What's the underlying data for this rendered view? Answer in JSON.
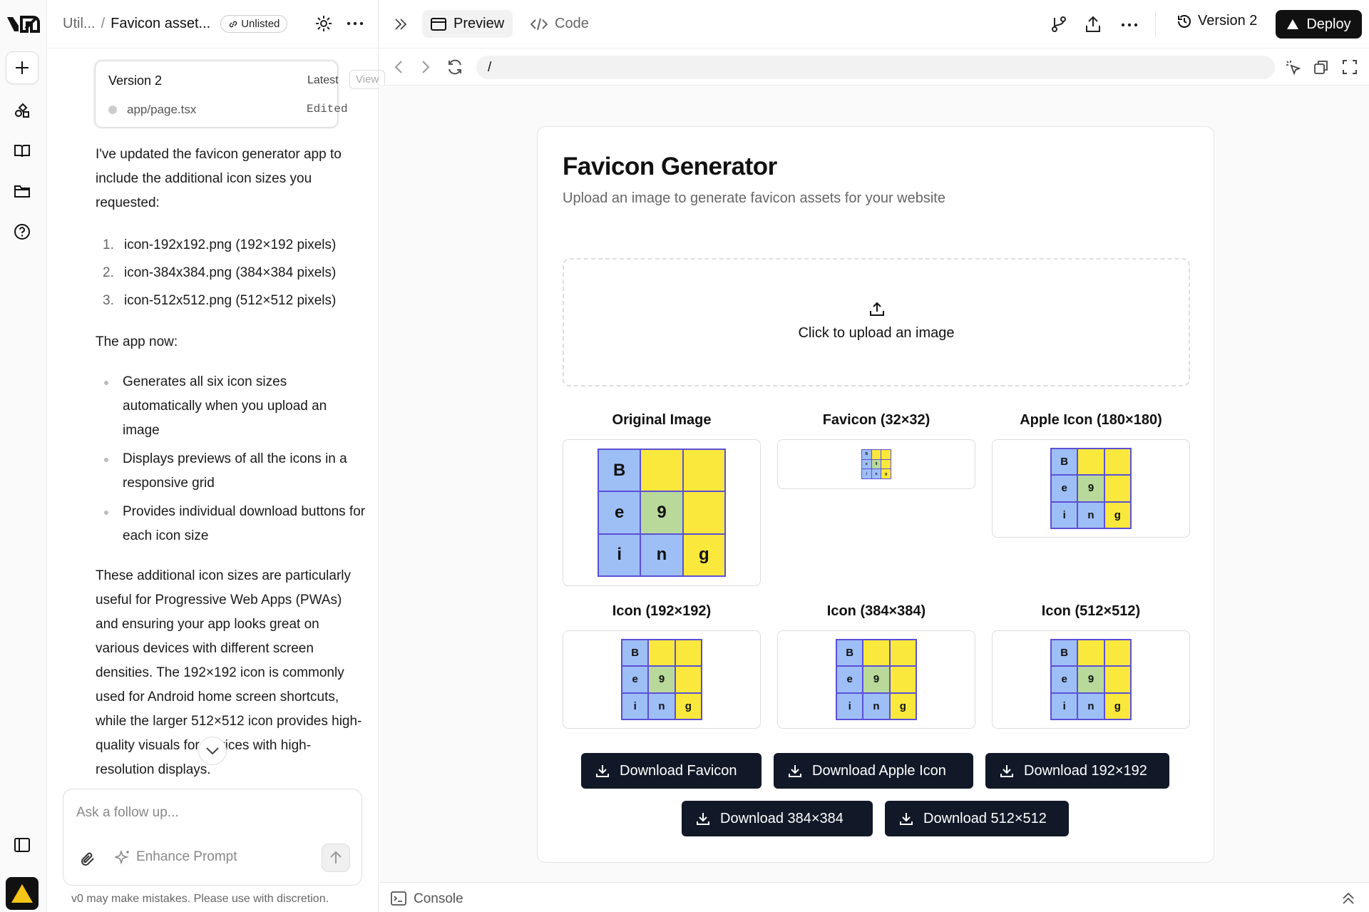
{
  "breadcrumb": {
    "parent": "Util...",
    "current": "Favicon asset...",
    "visibility": "Unlisted"
  },
  "version_card": {
    "title": "Version 2",
    "latest": "Latest",
    "view": "View",
    "file": "app/page.tsx",
    "status": "Edited"
  },
  "message": {
    "intro": "I've updated the favicon generator app to include the additional icon sizes you requested:",
    "numbered": [
      {
        "n": "1.",
        "text": "icon-192x192.png (192×192 pixels)"
      },
      {
        "n": "2.",
        "text": "icon-384x384.png (384×384 pixels)"
      },
      {
        "n": "3.",
        "text": "icon-512x512.png (512×512 pixels)"
      }
    ],
    "now": "The app now:",
    "bullets": [
      "Generates all six icon sizes automatically when you upload an image",
      "Displays previews of all the icons in a responsive grid",
      "Provides individual download buttons for each icon size"
    ],
    "closing": "These additional icon sizes are particularly useful for Progressive Web Apps (PWAs) and ensuring your app looks great on various devices with different screen densities. The 192×192 icon is commonly used for Android home screen shortcuts, while the larger 512×512 icon provides high-quality visuals for devices with high-resolution displays."
  },
  "composer": {
    "placeholder": "Ask a follow up...",
    "enhance": "Enhance Prompt"
  },
  "disclaimer": "v0 may make mistakes. Please use with discretion.",
  "topbar": {
    "preview": "Preview",
    "code": "Code",
    "version": "Version 2",
    "deploy": "Deploy"
  },
  "url": "/",
  "app": {
    "title": "Favicon Generator",
    "subtitle": "Upload an image to generate favicon assets for your website",
    "upload_text": "Click to upload an image",
    "labels": {
      "original": "Original Image",
      "favicon": "Favicon (32×32)",
      "apple": "Apple Icon (180×180)",
      "i192": "Icon (192×192)",
      "i384": "Icon (384×384)",
      "i512": "Icon (512×512)"
    },
    "grid_letters": [
      "B",
      "",
      "",
      "e",
      "9",
      "",
      "i",
      "n",
      "g"
    ],
    "buttons": {
      "favicon": "Download Favicon",
      "apple": "Download Apple Icon",
      "d192": "Download 192×192",
      "d384": "Download 384×384",
      "d512": "Download 512×512"
    }
  },
  "console": "Console",
  "colors": {
    "cell_blue": "#9ebef6",
    "cell_yellow": "#fae83c",
    "cell_green": "#b9d99a",
    "grid_border": "#5b50d6",
    "button_bg": "#111827"
  }
}
